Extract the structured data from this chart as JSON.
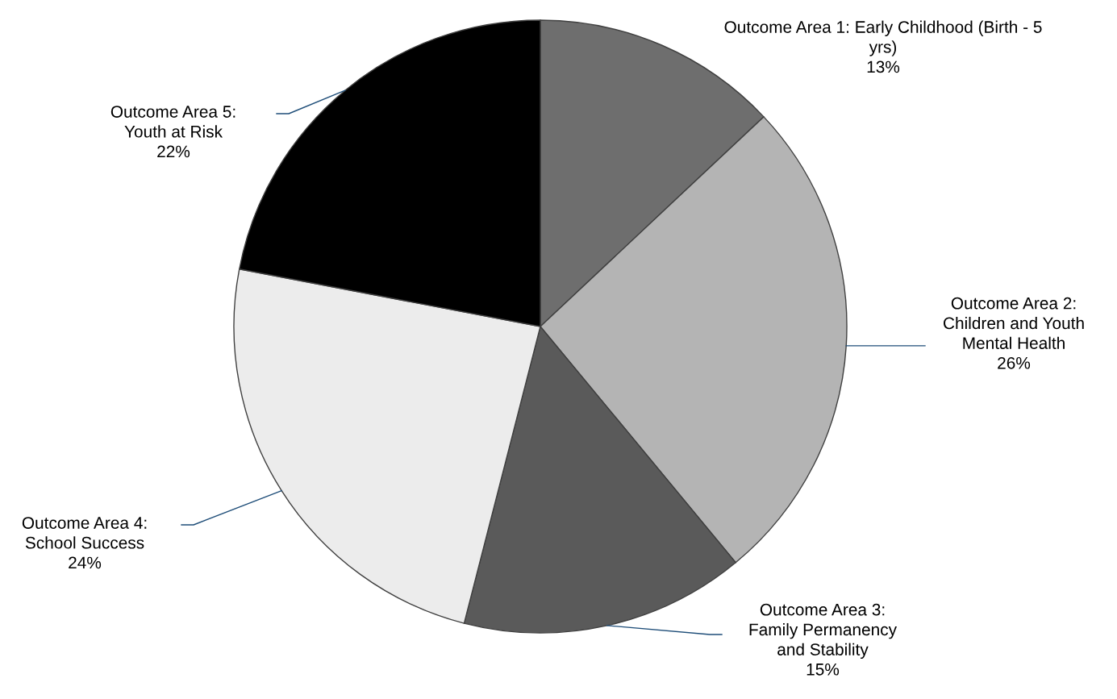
{
  "chart_data": {
    "type": "pie",
    "categories": [
      "Outcome Area 1: Early Childhood (Birth - 5\nyrs)",
      "Outcome Area 2:\nChildren and Youth\nMental Health",
      "Outcome Area 3:\nFamily Permanency\nand Stability",
      "Outcome Area 4:\nSchool Success",
      "Outcome Area 5:\nYouth at Risk"
    ],
    "values": [
      13,
      26,
      15,
      24,
      22
    ],
    "colors": [
      "#6e6e6e",
      "#b4b4b4",
      "#5a5a5a",
      "#ececec",
      "#000000"
    ],
    "value_labels": [
      "13%",
      "26%",
      "15%",
      "24%",
      "22%"
    ],
    "legend": false
  }
}
